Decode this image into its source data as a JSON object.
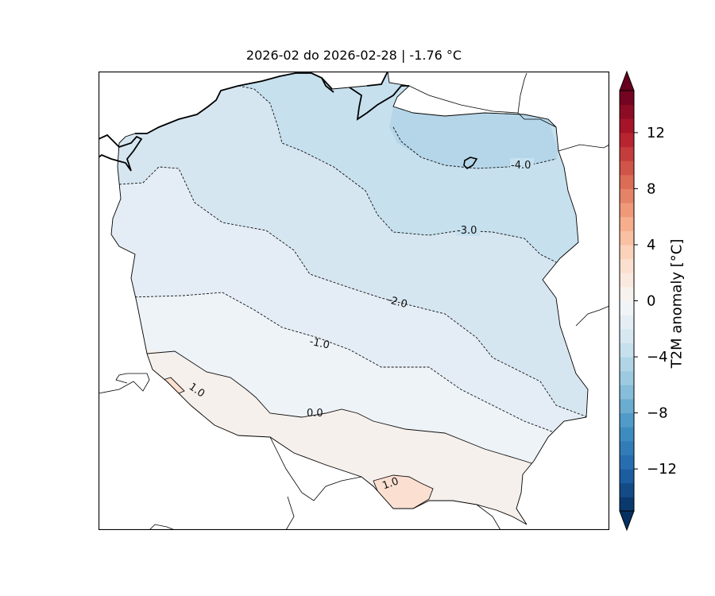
{
  "title": "2026-02 do 2026-02-28 | -1.76 °C",
  "colorbar": {
    "label": "T2M anomaly [°C]",
    "ticks": [
      {
        "value": 12,
        "label": "12"
      },
      {
        "value": 8,
        "label": "8"
      },
      {
        "value": 4,
        "label": "4"
      },
      {
        "value": 0,
        "label": "0"
      },
      {
        "value": -4,
        "label": "−4"
      },
      {
        "value": -8,
        "label": "−8"
      },
      {
        "value": -12,
        "label": "−12"
      }
    ],
    "range": [
      -15,
      15
    ],
    "extend": "both",
    "colormap": "RdBu_r"
  },
  "contour_labels": {
    "m4": "-4.0",
    "m3": "-3.0",
    "m2": "-2.0",
    "m1": "-1.0",
    "zero": "0.0",
    "p1_west": "1.0",
    "p1_south": "1.0"
  },
  "colors": {
    "band_lt_m4": "#b5d6e8",
    "band_m4_m3": "#c6e0ee",
    "band_m3_m2": "#d6e6f1",
    "band_m2_m1": "#e4edf5",
    "band_m1_0": "#eef3f8",
    "band_0_1": "#f6f0ec",
    "band_gt_1": "#fbe0d2"
  }
}
